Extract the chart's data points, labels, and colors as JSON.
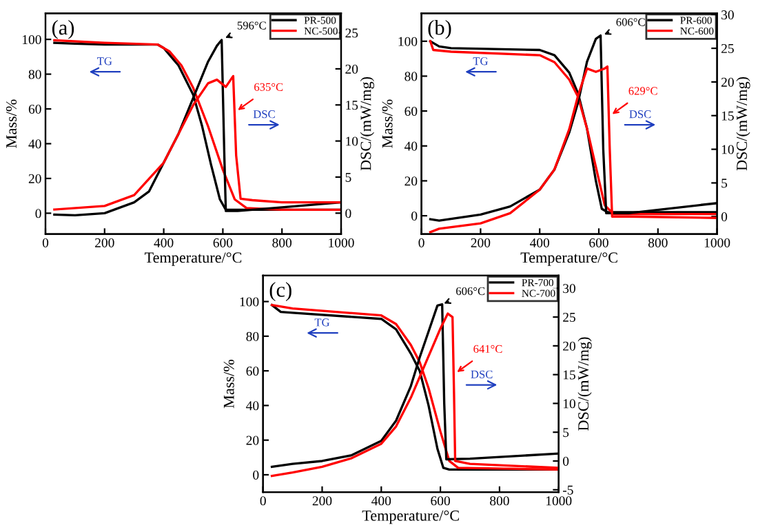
{
  "chart_data": [
    {
      "type": "line",
      "title": "(a)",
      "xlabel": "Temperature/°C",
      "ylabel": "Mass/%",
      "y2label": "DSC/(mW/mg)",
      "xlim": [
        0,
        1000
      ],
      "xticks": [
        0,
        200,
        400,
        600,
        800,
        1000
      ],
      "ylim": [
        -12,
        115
      ],
      "yticks": [
        0,
        20,
        40,
        60,
        80,
        100
      ],
      "y2lim": [
        -2.9,
        27.7
      ],
      "y2ticks": [
        0,
        5,
        10,
        15,
        20,
        25
      ],
      "legend": "top right",
      "grid": false,
      "series": [
        {
          "name": "PR-500",
          "color": "#000000",
          "x": [
            30,
            100,
            200,
            300,
            380,
            400,
            450,
            500,
            530,
            560,
            590,
            610,
            700,
            1000
          ],
          "values": [
            98,
            97.5,
            97,
            97,
            97,
            95,
            85,
            68,
            50,
            28,
            8,
            2,
            2,
            2
          ]
        },
        {
          "name": "NC-500",
          "color": "#ff0000",
          "x": [
            30,
            200,
            380,
            420,
            460,
            500,
            550,
            600,
            640,
            680,
            800,
            1000
          ],
          "values": [
            99.5,
            98,
            97,
            93,
            85,
            72,
            50,
            25,
            8,
            3,
            2,
            2
          ]
        },
        {
          "color": "#000000",
          "axis": "y2",
          "x": [
            30,
            100,
            200,
            300,
            350,
            400,
            450,
            500,
            550,
            580,
            596,
            605,
            610,
            650,
            800,
            1000
          ],
          "values": [
            -0.2,
            -0.3,
            0,
            1.5,
            3,
            7,
            11,
            16,
            21,
            23.2,
            24,
            8,
            0.3,
            0.3,
            0.8,
            1.5
          ]
        },
        {
          "color": "#ff0000",
          "axis": "y2",
          "x": [
            30,
            200,
            300,
            400,
            450,
            500,
            550,
            580,
            610,
            635,
            645,
            660,
            700,
            800,
            1000
          ],
          "values": [
            0.5,
            1,
            2.5,
            7,
            11,
            15,
            18,
            18.5,
            17.5,
            19,
            8,
            2,
            1.8,
            1.5,
            1.5
          ]
        }
      ],
      "annotations": [
        {
          "text": "596°C",
          "x": 596,
          "y": 100
        },
        {
          "text": "635°C",
          "x": 640,
          "y": 58
        },
        "TG",
        "DSC"
      ]
    },
    {
      "type": "line",
      "title": "(b)",
      "xlabel": "Temperature/°C",
      "ylabel": "Mass/%",
      "y2label": "DSC/(mW/mg)",
      "xlim": [
        0,
        1000
      ],
      "xticks": [
        0,
        200,
        400,
        600,
        800,
        1000
      ],
      "ylim": [
        -10.5,
        116
      ],
      "yticks": [
        0,
        20,
        40,
        60,
        80,
        100
      ],
      "y2lim": [
        -2.6,
        30.2
      ],
      "y2ticks": [
        0,
        5,
        10,
        15,
        20,
        25,
        30
      ],
      "legend": "top right",
      "grid": false,
      "series": [
        {
          "name": "PR-600",
          "color": "#000000",
          "x": [
            30,
            60,
            100,
            400,
            450,
            500,
            530,
            560,
            590,
            610,
            630,
            1000
          ],
          "values": [
            100,
            97,
            96,
            95,
            92,
            82,
            70,
            50,
            20,
            4,
            2,
            2
          ]
        },
        {
          "name": "NC-600",
          "color": "#ff0000",
          "x": [
            30,
            40,
            100,
            400,
            450,
            500,
            530,
            560,
            590,
            620,
            650,
            1000
          ],
          "values": [
            100,
            95,
            94,
            92,
            88,
            78,
            68,
            50,
            28,
            6,
            1,
            1
          ]
        },
        {
          "color": "#000000",
          "axis": "y2",
          "x": [
            30,
            60,
            200,
            300,
            400,
            450,
            500,
            530,
            560,
            590,
            606,
            615,
            625,
            700,
            1000
          ],
          "values": [
            -0.4,
            -0.6,
            0.3,
            1.5,
            4,
            7,
            12.5,
            17,
            23,
            26.4,
            26.9,
            10,
            0.5,
            0.5,
            2
          ]
        },
        {
          "color": "#ff0000",
          "axis": "y2",
          "x": [
            30,
            60,
            200,
            300,
            400,
            450,
            500,
            530,
            560,
            590,
            620,
            629,
            637,
            645,
            700,
            1000
          ],
          "values": [
            -2.3,
            -1.8,
            -1,
            0.5,
            4,
            7,
            13,
            18,
            22,
            21.5,
            22,
            22.3,
            10,
            0,
            0,
            -0.2
          ]
        }
      ],
      "annotations": [
        {
          "text": "606°C",
          "x": 606,
          "y": 103
        },
        {
          "text": "629°C",
          "x": 635,
          "y": 57
        },
        "TG",
        "DSC"
      ]
    },
    {
      "type": "line",
      "title": "(c)",
      "xlabel": "Temperature/°C",
      "ylabel": "Mass/%",
      "y2label": "DSC/(mW/mg)",
      "xlim": [
        0,
        1000
      ],
      "xticks": [
        0,
        200,
        400,
        600,
        800,
        1000
      ],
      "ylim": [
        -10,
        115
      ],
      "yticks": [
        0,
        20,
        40,
        60,
        80,
        100
      ],
      "y2lim": [
        -5.4,
        32.2
      ],
      "y2ticks": [
        -5,
        0,
        5,
        10,
        15,
        20,
        25,
        30
      ],
      "legend": "top right",
      "grid": false,
      "series": [
        {
          "name": "PR-700",
          "color": "#000000",
          "x": [
            30,
            60,
            100,
            400,
            450,
            500,
            530,
            560,
            590,
            610,
            630,
            1000
          ],
          "values": [
            98,
            94,
            93.5,
            90,
            84,
            70,
            60,
            40,
            15,
            4,
            3,
            3
          ]
        },
        {
          "name": "NC-700",
          "color": "#ff0000",
          "x": [
            30,
            100,
            400,
            450,
            500,
            530,
            560,
            600,
            630,
            660,
            1000
          ],
          "values": [
            98,
            96,
            92,
            87,
            75,
            65,
            50,
            25,
            8,
            4,
            3
          ]
        },
        {
          "color": "#000000",
          "axis": "y2",
          "x": [
            30,
            100,
            200,
            300,
            400,
            450,
            500,
            530,
            560,
            590,
            606,
            613,
            620,
            700,
            1000
          ],
          "values": [
            -1,
            -0.5,
            0,
            1,
            3.5,
            7,
            13,
            18,
            22.5,
            27,
            27.2,
            10,
            0.3,
            0.4,
            1.3
          ]
        },
        {
          "color": "#ff0000",
          "axis": "y2",
          "x": [
            30,
            100,
            200,
            300,
            400,
            450,
            500,
            550,
            600,
            625,
            641,
            646,
            650,
            700,
            1000
          ],
          "values": [
            -2.6,
            -2,
            -1,
            0.5,
            3,
            6,
            11,
            17,
            23,
            25.6,
            25,
            12,
            0,
            -0.5,
            -1.2
          ]
        }
      ],
      "annotations": [
        {
          "text": "606°C",
          "x": 600,
          "y": 98
        },
        {
          "text": "641°C",
          "x": 646,
          "y": 58
        },
        "TG",
        "DSC"
      ]
    }
  ]
}
